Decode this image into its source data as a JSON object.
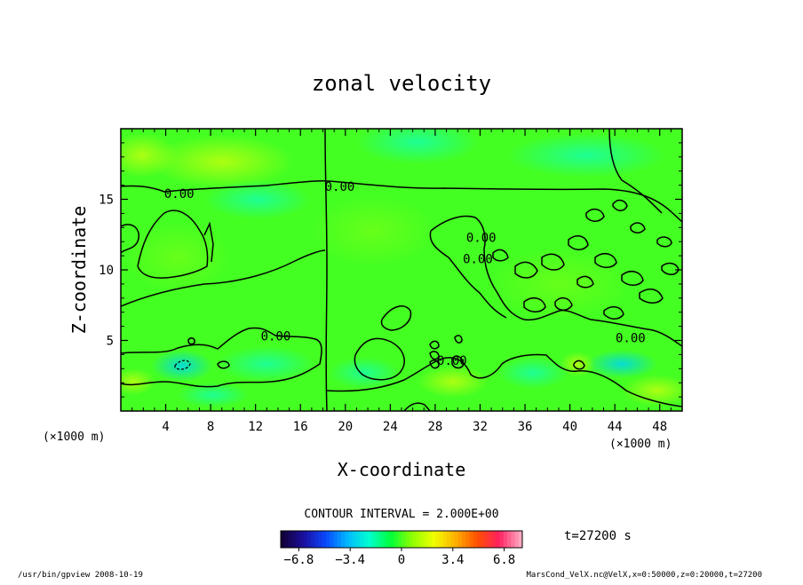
{
  "chart_data": {
    "type": "heatmap",
    "title": "zonal velocity",
    "xlabel": "X-coordinate",
    "ylabel": "Z-coordinate",
    "x_unit": "(×1000 m)",
    "y_unit": "(×1000 m)",
    "xlim": [
      0,
      50
    ],
    "ylim": [
      0,
      20
    ],
    "x_ticks": [
      4,
      8,
      12,
      16,
      20,
      24,
      28,
      32,
      36,
      40,
      44,
      48
    ],
    "y_ticks": [
      5,
      10,
      15
    ],
    "contour_interval_text": "CONTOUR INTERVAL = 2.000E+00",
    "contour_labels": [
      {
        "text": "0.00",
        "x": 5.2,
        "z": 15.4
      },
      {
        "text": "0.00",
        "x": 19.5,
        "z": 15.9
      },
      {
        "text": "0.00",
        "x": 13.8,
        "z": 5.3
      },
      {
        "text": "0.00",
        "x": 32.1,
        "z": 12.3
      },
      {
        "text": "0.00",
        "x": 45.4,
        "z": 5.2
      },
      {
        "text": "0.00",
        "x": 31.8,
        "z": 10.8
      },
      {
        "text": "0.00",
        "x": 29.5,
        "z": 3.6
      }
    ],
    "colorbar": {
      "range": [
        -8,
        8
      ],
      "tick_values": [
        -6.8,
        -3.4,
        0,
        3.4,
        6.8
      ],
      "tick_labels": [
        "−6.8",
        "−3.4",
        "0",
        "3.4",
        "6.8"
      ],
      "colors": [
        "#120038",
        "#1a10a0",
        "#0a48ff",
        "#00b8ff",
        "#00ffd0",
        "#00ff3a",
        "#90ff00",
        "#f0ff00",
        "#ffb000",
        "#ff5000",
        "#ff2060",
        "#ffa8c0"
      ]
    },
    "grid": false,
    "legend": "none"
  },
  "time_text": "t=27200 s",
  "footer": {
    "left": "/usr/bin/gpview  2008-10-19",
    "right": "MarsCond_VelX.nc@VelX,x=0:50000,z=0:20000,t=27200"
  }
}
